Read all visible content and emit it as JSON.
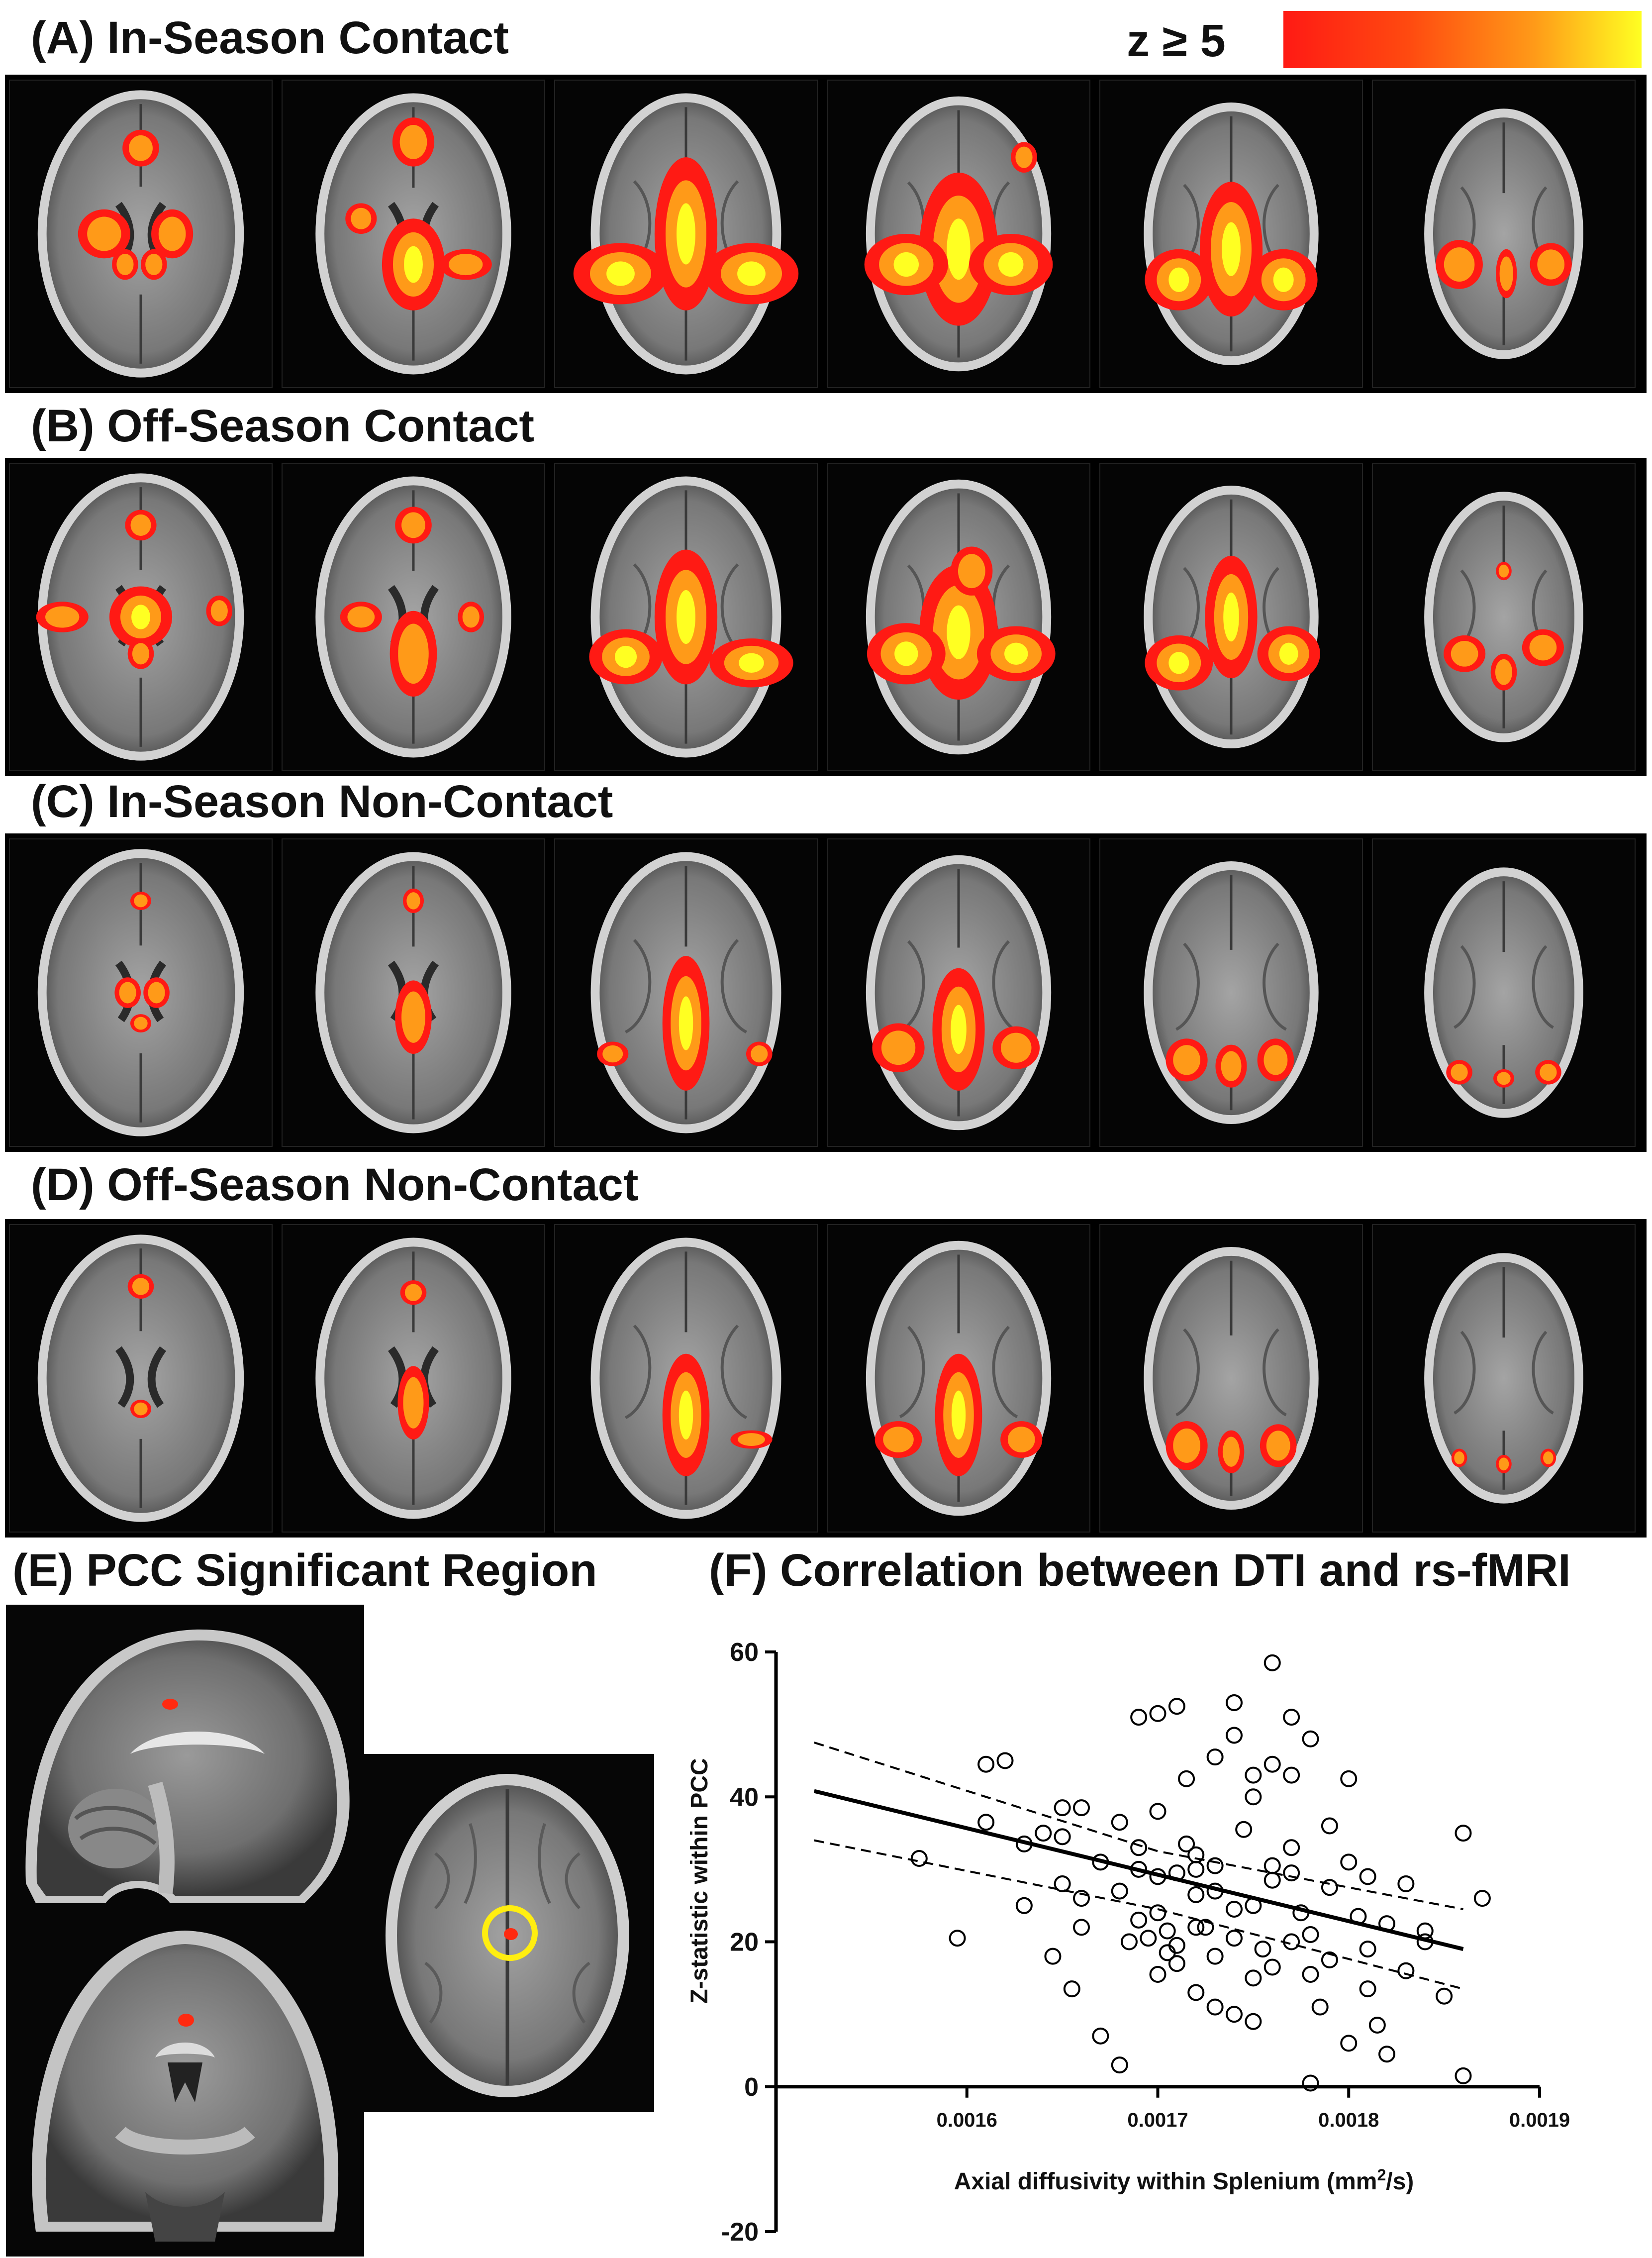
{
  "colorbar": {
    "label": "z ≥ 5",
    "colors": [
      "#ff1a14",
      "#ff9a18",
      "#ffff22"
    ]
  },
  "panels": {
    "a": {
      "title": "(A) In-Season Contact",
      "slices": 6
    },
    "b": {
      "title": "(B) Off-Season Contact",
      "slices": 6
    },
    "c": {
      "title": "(C) In-Season Non-Contact",
      "slices": 6
    },
    "d": {
      "title": "(D) Off-Season Non-Contact",
      "slices": 6
    },
    "e": {
      "title": "(E) PCC Significant Region"
    },
    "f": {
      "title": "(F) Correlation between DTI and rs-fMRI"
    }
  },
  "chart_data": {
    "type": "scatter",
    "title": "(F) Correlation between DTI and rs-fMRI",
    "xlabel": "Axial diffusivity within Splenium (mm²/s)",
    "xlabel_main": "Axial diffusivity within Splenium (mm",
    "xlabel_sup": "2",
    "xlabel_tail": "/s)",
    "ylabel": "Z-statistic within PCC",
    "xlim": [
      0.0015,
      0.0019
    ],
    "ylim": [
      -20,
      60
    ],
    "xticks": [
      "0.0016",
      "0.0017",
      "0.0018",
      "0.0019"
    ],
    "xtick_values": [
      0.0016,
      0.0017,
      0.0018,
      0.0019
    ],
    "yticks": [
      "-20",
      "0",
      "20",
      "40",
      "60"
    ],
    "ytick_values": [
      -20,
      0,
      20,
      40,
      60
    ],
    "fit": {
      "x": [
        0.00152,
        0.00186
      ],
      "y": [
        40.8,
        19.0
      ]
    },
    "ci_upper": {
      "x": [
        0.00152,
        0.0017,
        0.00186
      ],
      "y": [
        47.5,
        32.5,
        24.5
      ]
    },
    "ci_lower": {
      "x": [
        0.00152,
        0.0017,
        0.00186
      ],
      "y": [
        34.0,
        24.5,
        13.5
      ]
    },
    "points": [
      [
        0.001575,
        31.5
      ],
      [
        0.001595,
        20.5
      ],
      [
        0.00161,
        44.5
      ],
      [
        0.00162,
        45.0
      ],
      [
        0.00161,
        36.5
      ],
      [
        0.00163,
        33.5
      ],
      [
        0.00164,
        35.0
      ],
      [
        0.00163,
        25.0
      ],
      [
        0.00165,
        38.5
      ],
      [
        0.00165,
        34.5
      ],
      [
        0.001645,
        18.0
      ],
      [
        0.00166,
        38.5
      ],
      [
        0.00166,
        26.0
      ],
      [
        0.00167,
        7.0
      ],
      [
        0.001655,
        13.5
      ],
      [
        0.00168,
        27.0
      ],
      [
        0.00169,
        30.0
      ],
      [
        0.001685,
        20.0
      ],
      [
        0.00168,
        36.5
      ],
      [
        0.00169,
        51.0
      ],
      [
        0.0017,
        51.5
      ],
      [
        0.00171,
        52.5
      ],
      [
        0.00169,
        23.0
      ],
      [
        0.001695,
        20.5
      ],
      [
        0.0017,
        15.5
      ],
      [
        0.001705,
        18.5
      ],
      [
        0.00171,
        29.5
      ],
      [
        0.001715,
        42.5
      ],
      [
        0.00172,
        32.0
      ],
      [
        0.00172,
        26.5
      ],
      [
        0.00173,
        45.5
      ],
      [
        0.00173,
        30.5
      ],
      [
        0.001725,
        22.0
      ],
      [
        0.00174,
        48.5
      ],
      [
        0.00174,
        53.0
      ],
      [
        0.00175,
        40.0
      ],
      [
        0.001745,
        35.5
      ],
      [
        0.00175,
        25.0
      ],
      [
        0.001755,
        19.0
      ],
      [
        0.00176,
        16.5
      ],
      [
        0.00176,
        58.5
      ],
      [
        0.00177,
        43.0
      ],
      [
        0.00177,
        29.5
      ],
      [
        0.001775,
        24.0
      ],
      [
        0.00178,
        21.0
      ],
      [
        0.00178,
        15.5
      ],
      [
        0.001785,
        11.0
      ],
      [
        0.00179,
        27.5
      ],
      [
        0.0018,
        42.5
      ],
      [
        0.0018,
        31.0
      ],
      [
        0.001805,
        23.5
      ],
      [
        0.00181,
        19.0
      ],
      [
        0.00181,
        13.5
      ],
      [
        0.001815,
        8.5
      ],
      [
        0.00183,
        28.0
      ],
      [
        0.00184,
        21.5
      ],
      [
        0.00185,
        12.5
      ],
      [
        0.00186,
        35.0
      ],
      [
        0.00187,
        26.0
      ],
      [
        0.00171,
        17.0
      ],
      [
        0.00172,
        13.0
      ],
      [
        0.00173,
        11.0
      ],
      [
        0.00174,
        10.0
      ],
      [
        0.00175,
        9.0
      ],
      [
        0.00168,
        3.0
      ],
      [
        0.00178,
        0.5
      ],
      [
        0.00186,
        1.5
      ],
      [
        0.00183,
        16.0
      ],
      [
        0.0018,
        6.0
      ],
      [
        0.00182,
        4.5
      ],
      [
        0.00177,
        51.0
      ],
      [
        0.00178,
        48.0
      ],
      [
        0.00176,
        44.5
      ],
      [
        0.00175,
        43.0
      ],
      [
        0.00179,
        36.0
      ],
      [
        0.0017,
        38.0
      ],
      [
        0.001715,
        33.5
      ],
      [
        0.00172,
        30.0
      ],
      [
        0.00173,
        27.0
      ],
      [
        0.00174,
        24.5
      ],
      [
        0.00176,
        30.5
      ],
      [
        0.00177,
        20.0
      ],
      [
        0.00179,
        17.5
      ],
      [
        0.00181,
        29.0
      ],
      [
        0.00182,
        22.5
      ],
      [
        0.00184,
        20.0
      ],
      [
        0.0017,
        24.0
      ],
      [
        0.001705,
        21.5
      ],
      [
        0.00171,
        19.5
      ],
      [
        0.00172,
        22.0
      ],
      [
        0.00173,
        18.0
      ],
      [
        0.00174,
        20.5
      ],
      [
        0.00175,
        15.0
      ],
      [
        0.00176,
        28.5
      ],
      [
        0.00177,
        33.0
      ],
      [
        0.00165,
        28.0
      ],
      [
        0.00166,
        22.0
      ],
      [
        0.00167,
        31.0
      ],
      [
        0.00169,
        33.0
      ],
      [
        0.0017,
        29.0
      ]
    ]
  }
}
